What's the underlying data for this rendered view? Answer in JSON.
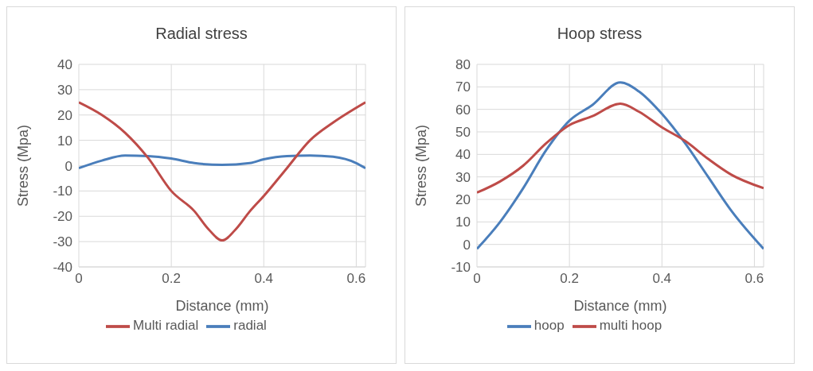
{
  "chart_data": [
    {
      "type": "line",
      "title": "Radial stress",
      "xlabel": "Distance (mm)",
      "ylabel": "Stress (Mpa)",
      "xlim": [
        0,
        0.62
      ],
      "xticks": [
        0,
        0.2,
        0.4,
        0.6
      ],
      "ylim": [
        -40,
        40
      ],
      "yticks": [
        -40,
        -30,
        -20,
        -10,
        0,
        10,
        20,
        30,
        40
      ],
      "grid": true,
      "legend": "bottom",
      "marker": "none",
      "series": [
        {
          "name": "radial",
          "color": "#4a7ebb",
          "x": [
            0,
            0.05,
            0.1,
            0.15,
            0.2,
            0.25,
            0.31,
            0.37,
            0.4,
            0.45,
            0.5,
            0.55,
            0.6,
            0.62
          ],
          "values": [
            -1,
            2,
            4,
            3.8,
            2.8,
            1,
            0.3,
            1,
            2.5,
            3.8,
            4,
            3.5,
            1,
            -1
          ]
        },
        {
          "name": "Multi radial",
          "color": "#be4b48",
          "x": [
            0,
            0.05,
            0.1,
            0.15,
            0.2,
            0.25,
            0.28,
            0.31,
            0.34,
            0.37,
            0.4,
            0.45,
            0.5,
            0.55,
            0.62
          ],
          "values": [
            25,
            20,
            13,
            3,
            -10,
            -18,
            -25,
            -29.5,
            -25,
            -18,
            -12,
            -1,
            10,
            17,
            25
          ]
        }
      ]
    },
    {
      "type": "line",
      "title": "Hoop stress",
      "xlabel": "Distance (mm)",
      "ylabel": "Stress (Mpa)",
      "xlim": [
        0,
        0.62
      ],
      "xticks": [
        0,
        0.2,
        0.4,
        0.6
      ],
      "ylim": [
        -10,
        80
      ],
      "yticks": [
        -10,
        0,
        10,
        20,
        30,
        40,
        50,
        60,
        70,
        80
      ],
      "grid": true,
      "legend": "bottom",
      "marker": "none",
      "series": [
        {
          "name": "hoop",
          "color": "#4a7ebb",
          "x": [
            0,
            0.05,
            0.1,
            0.15,
            0.2,
            0.25,
            0.31,
            0.35,
            0.4,
            0.45,
            0.5,
            0.55,
            0.62
          ],
          "values": [
            -2,
            10,
            25,
            42,
            55,
            62,
            72,
            68,
            58,
            45,
            30,
            15,
            -2
          ]
        },
        {
          "name": "multi hoop",
          "color": "#be4b48",
          "x": [
            0,
            0.05,
            0.1,
            0.15,
            0.2,
            0.25,
            0.31,
            0.35,
            0.4,
            0.45,
            0.5,
            0.55,
            0.62
          ],
          "values": [
            23,
            28,
            35,
            45,
            53,
            57,
            62.5,
            59,
            52,
            46,
            38,
            31,
            25
          ]
        }
      ]
    }
  ]
}
